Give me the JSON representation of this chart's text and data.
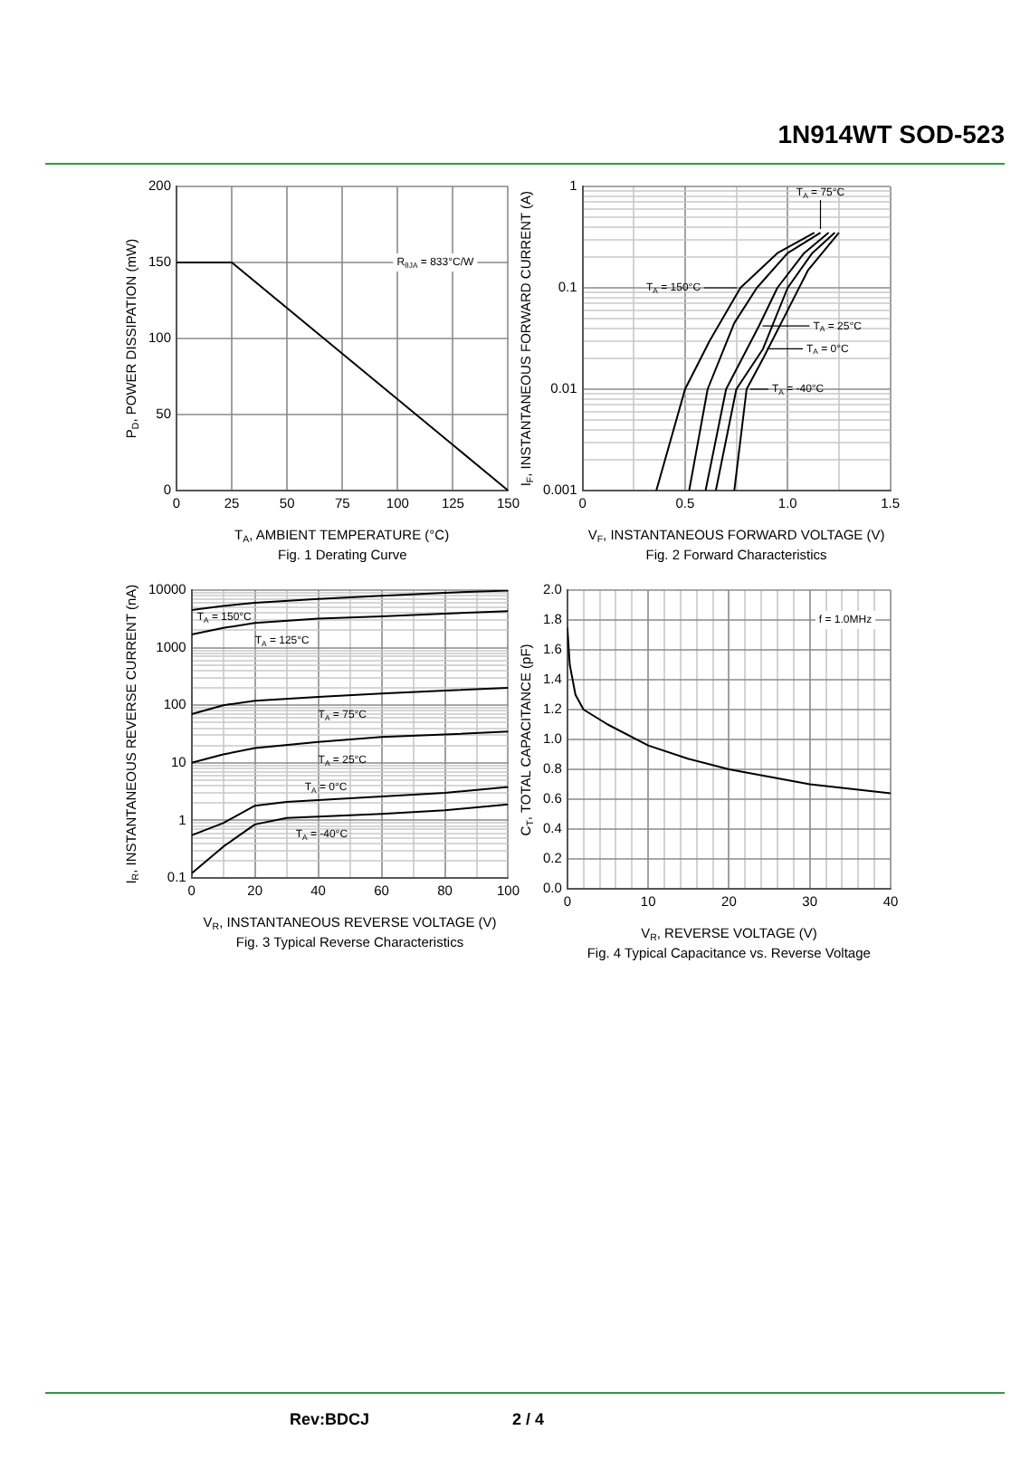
{
  "chart_data": [
    {
      "type": "line",
      "title": "Fig. 1 Derating Curve",
      "xlabel": "T$_{A}$, AMBIENT TEMPERATURE (°C)",
      "ylabel": "P$_{D}$, POWER DISSIPATION (mW)",
      "x": [
        0,
        25,
        150
      ],
      "values": [
        150,
        150,
        0
      ],
      "color": "#000000",
      "xlim": [
        0,
        150
      ],
      "xticks": [
        0,
        25,
        50,
        75,
        100,
        125,
        150
      ],
      "ylim": [
        0,
        200
      ],
      "yticks": [
        0,
        50,
        100,
        150,
        200
      ],
      "grid": true,
      "annotations": [
        "R$_{θJA}$ = 833°C/W",
        "1N914WT SOD-523",
        "Rev:BDCJ",
        "2 / 4"
      ]
    },
    {
      "type": "line",
      "title": "Fig. 2 Forward Characteristics",
      "xlabel": "V$_{F}$, INSTANTANEOUS FORWARD VOLTAGE (V)",
      "ylabel": "I$_{F}$, INSTANTANEOUS FORWARD CURRENT (A)",
      "log": "y",
      "grid": true,
      "legend": "right",
      "xlim": [
        0,
        1.5
      ],
      "xticks": [
        0,
        {
          "value": 0.25,
          "label": null
        },
        0.5,
        {
          "value": 0.75,
          "label": null
        },
        {
          "value": 1,
          "label": "1.0"
        },
        {
          "value": 1.25,
          "label": null
        },
        1.5
      ],
      "ylim": [
        0.001,
        1
      ],
      "yticks": [
        0.001,
        {
          "value": 0.002,
          "label": null
        },
        {
          "value": 0.003,
          "label": null
        },
        {
          "value": 0.004,
          "label": null
        },
        {
          "value": 0.005,
          "label": null
        },
        {
          "value": 0.006,
          "label": null
        },
        {
          "value": 0.007,
          "label": null
        },
        {
          "value": 0.008,
          "label": null
        },
        {
          "value": 0.009,
          "label": null
        },
        0.01,
        {
          "value": 0.02,
          "label": null
        },
        {
          "value": 0.03,
          "label": null
        },
        {
          "value": 0.04,
          "label": null
        },
        {
          "value": 0.05,
          "label": null
        },
        {
          "value": 0.06,
          "label": null
        },
        {
          "value": 0.07,
          "label": null
        },
        {
          "value": 0.08,
          "label": null
        },
        {
          "value": 0.09,
          "label": null
        },
        0.1,
        {
          "value": 0.2,
          "label": null
        },
        {
          "value": 0.3,
          "label": null
        },
        {
          "value": 0.4,
          "label": null
        },
        {
          "value": 0.5,
          "label": null
        },
        {
          "value": 0.6,
          "label": null
        },
        {
          "value": 0.7,
          "label": null
        },
        {
          "value": 0.8,
          "label": null
        },
        {
          "value": 0.9,
          "label": null
        },
        1
      ],
      "series": [
        {
          "name": "T$_{A}$ = 150°C",
          "color": "#000000",
          "x": [
            0.36,
            0.5,
            0.62,
            0.77,
            0.95,
            1.13
          ],
          "values": [
            0.001,
            0.01,
            0.03,
            0.1,
            0.22,
            0.35
          ]
        },
        {
          "name": "T$_{A}$ = 75°C",
          "color": "#000000",
          "x": [
            0.52,
            0.61,
            0.74,
            0.85,
            1.0,
            1.16
          ],
          "values": [
            0.001,
            0.01,
            0.045,
            0.1,
            0.22,
            0.35
          ]
        },
        {
          "name": "T$_{A}$ = 25°C",
          "color": "#000000",
          "x": [
            0.6,
            0.7,
            0.86,
            0.95,
            1.08,
            1.2
          ],
          "values": [
            0.001,
            0.01,
            0.042,
            0.1,
            0.22,
            0.35
          ]
        },
        {
          "name": "T$_{A}$ = 0°C",
          "color": "#000000",
          "x": [
            0.65,
            0.75,
            0.88,
            1.0,
            1.12,
            1.23
          ],
          "values": [
            0.001,
            0.01,
            0.025,
            0.1,
            0.22,
            0.35
          ]
        },
        {
          "name": "T$_{A}$ = -40°C",
          "color": "#000000",
          "x": [
            0.74,
            0.8,
            0.88,
            1.0,
            1.1,
            1.25
          ],
          "values": [
            0.001,
            0.01,
            0.02,
            0.06,
            0.15,
            0.35
          ]
        }
      ]
    },
    {
      "type": "line",
      "title": "Fig. 3 Typical Reverse Characteristics",
      "xlabel": "V$_{R}$, INSTANTANEOUS REVERSE VOLTAGE (V)",
      "ylabel": "I$_{R}$, INSTANTANEOUS REVERSE CURRENT (nA)",
      "log": "y",
      "grid": true,
      "xlim": [
        0,
        100
      ],
      "xticks": [
        0,
        {
          "value": 10,
          "label": null
        },
        20,
        {
          "value": 30,
          "label": null
        },
        40,
        {
          "value": 50,
          "label": null
        },
        60,
        {
          "value": 70,
          "label": null
        },
        80,
        {
          "value": 90,
          "label": null
        },
        100
      ],
      "ylim": [
        0.1,
        10000
      ],
      "yticks": [
        0.1,
        {
          "value": 0.2,
          "label": null
        },
        {
          "value": 0.3,
          "label": null
        },
        {
          "value": 0.4,
          "label": null
        },
        {
          "value": 0.5,
          "label": null
        },
        {
          "value": 0.6,
          "label": null
        },
        {
          "value": 0.7,
          "label": null
        },
        {
          "value": 0.8,
          "label": null
        },
        {
          "value": 0.9,
          "label": null
        },
        1,
        {
          "value": 2,
          "label": null
        },
        {
          "value": 3,
          "label": null
        },
        {
          "value": 4,
          "label": null
        },
        {
          "value": 5,
          "label": null
        },
        {
          "value": 6,
          "label": null
        },
        {
          "value": 7,
          "label": null
        },
        {
          "value": 8,
          "label": null
        },
        {
          "value": 9,
          "label": null
        },
        10,
        {
          "value": 20,
          "label": null
        },
        {
          "value": 30,
          "label": null
        },
        {
          "value": 40,
          "label": null
        },
        {
          "value": 50,
          "label": null
        },
        {
          "value": 60,
          "label": null
        },
        {
          "value": 70,
          "label": null
        },
        {
          "value": 80,
          "label": null
        },
        {
          "value": 90,
          "label": null
        },
        100,
        {
          "value": 200,
          "label": null
        },
        {
          "value": 300,
          "label": null
        },
        {
          "value": 400,
          "label": null
        },
        {
          "value": 500,
          "label": null
        },
        {
          "value": 600,
          "label": null
        },
        {
          "value": 700,
          "label": null
        },
        {
          "value": 800,
          "label": null
        },
        {
          "value": 900,
          "label": null
        },
        1000,
        {
          "value": 2000,
          "label": null
        },
        {
          "value": 3000,
          "label": null
        },
        {
          "value": 4000,
          "label": null
        },
        {
          "value": 5000,
          "label": null
        },
        {
          "value": 6000,
          "label": null
        },
        {
          "value": 7000,
          "label": null
        },
        {
          "value": 8000,
          "label": null
        },
        {
          "value": 9000,
          "label": null
        },
        10000
      ],
      "x": [
        0,
        10,
        20,
        40,
        60,
        80,
        100
      ],
      "series": [
        {
          "name": "T$_{A}$ = 150°C",
          "color": "#000000",
          "values": [
            4500,
            5300,
            6000,
            7000,
            8000,
            9000,
            9800
          ]
        },
        {
          "name": "T$_{A}$ = 125°C",
          "color": "#000000",
          "values": [
            1700,
            2200,
            2700,
            3200,
            3500,
            3900,
            4300
          ]
        },
        {
          "name": "T$_{A}$ = 75°C",
          "color": "#000000",
          "values": [
            70,
            100,
            120,
            140,
            160,
            180,
            200
          ]
        },
        {
          "name": "T$_{A}$ = 25°C",
          "color": "#000000",
          "values": [
            10,
            14,
            18,
            23,
            28,
            31,
            35
          ]
        },
        {
          "name": "T$_{A}$ = 0°C",
          "color": "#000000",
          "x": [
            0,
            10,
            20,
            30,
            60,
            80,
            100
          ],
          "values": [
            0.55,
            0.9,
            1.8,
            2.1,
            2.6,
            3.0,
            3.8
          ]
        },
        {
          "name": "T$_{A}$ = -40°C",
          "color": "#000000",
          "x": [
            0,
            10,
            20,
            30,
            60,
            80,
            100
          ],
          "values": [
            0.12,
            0.35,
            0.85,
            1.1,
            1.3,
            1.5,
            1.9
          ]
        }
      ]
    },
    {
      "type": "line",
      "title": "Fig. 4 Typical Capacitance vs. Reverse Voltage",
      "xlabel": "V$_{R}$, REVERSE VOLTAGE (V)",
      "ylabel": "C$_{T}$, TOTAL CAPACITANCE (pF)",
      "grid": true,
      "xlim": [
        0,
        40
      ],
      "xticks": [
        0,
        {
          "value": 2,
          "label": null
        },
        {
          "value": 4,
          "label": null
        },
        {
          "value": 6,
          "label": null
        },
        {
          "value": 8,
          "label": null
        },
        10,
        {
          "value": 12,
          "label": null
        },
        {
          "value": 14,
          "label": null
        },
        {
          "value": 16,
          "label": null
        },
        {
          "value": 18,
          "label": null
        },
        20,
        {
          "value": 22,
          "label": null
        },
        {
          "value": 24,
          "label": null
        },
        {
          "value": 26,
          "label": null
        },
        {
          "value": 28,
          "label": null
        },
        30,
        {
          "value": 32,
          "label": null
        },
        {
          "value": 34,
          "label": null
        },
        {
          "value": 36,
          "label": null
        },
        {
          "value": 38,
          "label": null
        },
        40
      ],
      "ylim": [
        0,
        2
      ],
      "yticks": [
        {
          "value": 0,
          "label": "0.0"
        },
        0.2,
        0.4,
        0.6,
        0.8,
        {
          "value": 1,
          "label": "1.0"
        },
        1.2,
        1.4,
        1.6,
        1.8,
        {
          "value": 2,
          "label": "2.0"
        }
      ],
      "x": [
        0,
        0.3,
        1,
        2,
        5,
        10,
        15,
        20,
        25,
        30,
        35,
        40
      ],
      "values": [
        1.75,
        1.5,
        1.3,
        1.2,
        1.1,
        0.96,
        0.87,
        0.8,
        0.75,
        0.7,
        0.67,
        0.64
      ],
      "color": "#000000",
      "annotations": [
        "f = 1.0MHz"
      ]
    }
  ]
}
